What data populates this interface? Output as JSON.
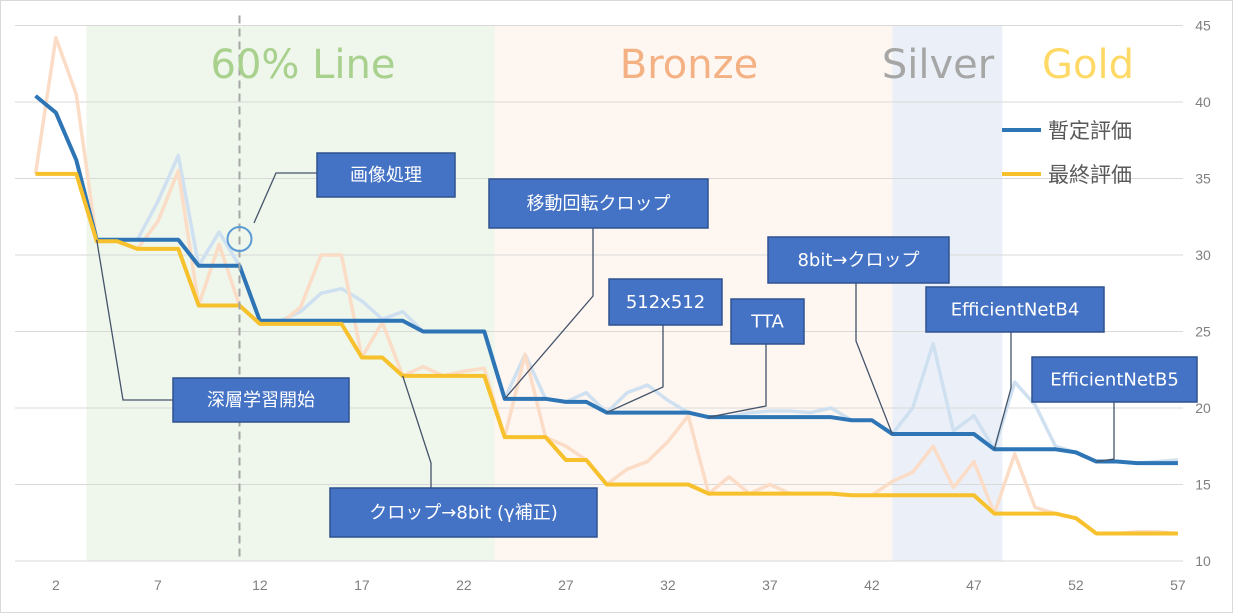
{
  "chart_data": {
    "type": "line",
    "x": [
      1,
      2,
      3,
      4,
      5,
      6,
      7,
      8,
      9,
      10,
      11,
      12,
      13,
      14,
      15,
      16,
      17,
      18,
      19,
      20,
      21,
      22,
      23,
      24,
      25,
      26,
      27,
      28,
      29,
      30,
      31,
      32,
      33,
      34,
      35,
      36,
      37,
      38,
      39,
      40,
      41,
      42,
      43,
      44,
      45,
      46,
      47,
      48,
      49,
      50,
      51,
      52,
      53,
      54,
      55,
      56,
      57
    ],
    "x_ticks": [
      2,
      7,
      12,
      17,
      22,
      27,
      32,
      37,
      42,
      47,
      52,
      57
    ],
    "ylim": [
      10,
      45
    ],
    "y_ticks": [
      10,
      15,
      20,
      25,
      30,
      35,
      40,
      45
    ],
    "y_axis_side": "right",
    "series": [
      {
        "name": "暫定評価",
        "color": "#2e75b6",
        "step_values": [
          40.4,
          39.3,
          36.2,
          31.0,
          31.0,
          31.0,
          31.0,
          31.0,
          29.3,
          29.3,
          29.3,
          25.7,
          25.7,
          25.7,
          25.7,
          25.7,
          25.7,
          25.7,
          25.7,
          25.0,
          25.0,
          25.0,
          25.0,
          20.6,
          20.6,
          20.6,
          20.4,
          20.4,
          19.7,
          19.7,
          19.7,
          19.7,
          19.7,
          19.4,
          19.4,
          19.4,
          19.4,
          19.4,
          19.4,
          19.4,
          19.2,
          19.2,
          18.3,
          18.3,
          18.3,
          18.3,
          18.3,
          17.3,
          17.3,
          17.3,
          17.3,
          17.1,
          16.5,
          16.5,
          16.4,
          16.4,
          16.4
        ],
        "raw_values": [
          40.4,
          39.3,
          36.2,
          31.0,
          31.0,
          31.0,
          33.5,
          36.5,
          29.3,
          31.5,
          29.3,
          25.7,
          25.7,
          26.3,
          27.5,
          27.8,
          27.0,
          25.8,
          26.3,
          25.0,
          25.0,
          25.0,
          25.0,
          20.6,
          23.5,
          20.6,
          20.4,
          21.0,
          19.7,
          21.0,
          21.5,
          20.5,
          19.7,
          19.4,
          19.4,
          19.7,
          19.8,
          19.8,
          19.7,
          20.0,
          19.2,
          19.2,
          18.3,
          20.0,
          24.2,
          18.5,
          19.5,
          17.3,
          21.7,
          20.2,
          17.5,
          17.1,
          16.5,
          16.5,
          16.4,
          16.5,
          16.6
        ]
      },
      {
        "name": "最終評価",
        "color": "#f6c12d",
        "step_values": [
          35.3,
          35.3,
          35.3,
          30.9,
          30.9,
          30.4,
          30.4,
          30.4,
          26.7,
          26.7,
          26.7,
          25.5,
          25.5,
          25.5,
          25.5,
          25.5,
          23.3,
          23.3,
          22.1,
          22.1,
          22.1,
          22.1,
          22.1,
          18.1,
          18.1,
          18.1,
          16.6,
          16.6,
          15.0,
          15.0,
          15.0,
          15.0,
          15.0,
          14.4,
          14.4,
          14.4,
          14.4,
          14.4,
          14.4,
          14.4,
          14.3,
          14.3,
          14.3,
          14.3,
          14.3,
          14.3,
          14.3,
          13.1,
          13.1,
          13.1,
          13.1,
          12.8,
          11.8,
          11.8,
          11.8,
          11.8,
          11.8
        ],
        "raw_values": [
          35.3,
          44.2,
          40.5,
          30.9,
          30.9,
          30.4,
          32.2,
          35.5,
          26.7,
          30.7,
          26.7,
          25.5,
          25.5,
          26.6,
          30.0,
          30.0,
          23.3,
          25.6,
          22.1,
          22.7,
          22.1,
          22.4,
          22.6,
          18.1,
          23.5,
          18.1,
          17.5,
          16.6,
          15.0,
          16.0,
          16.5,
          17.8,
          19.5,
          14.4,
          15.5,
          14.4,
          15.0,
          14.4,
          14.4,
          14.4,
          14.3,
          14.3,
          15.2,
          15.8,
          17.5,
          14.8,
          16.5,
          13.1,
          17.0,
          13.5,
          13.1,
          12.8,
          11.8,
          11.8,
          11.9,
          11.9,
          11.8
        ]
      }
    ],
    "zones": [
      {
        "label": "60% Line",
        "x_from": 3.5,
        "x_to": 23.5,
        "fill": "#e2efda",
        "text_color": "#a9d18e"
      },
      {
        "label": "Bronze",
        "x_from": 23.5,
        "x_to": 43,
        "fill": "#fbe5d6",
        "text_color": "#f4b183"
      },
      {
        "label": "Silver",
        "x_from": 43,
        "x_to": 48.4,
        "fill": "#dae3f3",
        "text_color": "#a6a6a6"
      },
      {
        "label": "Gold",
        "x_from": 48.4,
        "x_to": 58,
        "fill": "#ffffff",
        "text_color": "#ffd966"
      }
    ],
    "reference_line_x": 11,
    "legend_position": "right",
    "annotations": [
      {
        "text": "画像処理",
        "x": 11,
        "y": 29.3
      },
      {
        "text": "深層学習開始",
        "x": 4,
        "y": 31.0
      },
      {
        "text": "移動回転クロップ",
        "x": 24,
        "y": 20.6
      },
      {
        "text": "クロップ→8bit (γ補正)",
        "x": 19,
        "y": 22.1
      },
      {
        "text": "512x512",
        "x": 29,
        "y": 19.7
      },
      {
        "text": "TTA",
        "x": 34,
        "y": 19.4
      },
      {
        "text": "8bit→クロップ",
        "x": 43,
        "y": 18.3
      },
      {
        "text": "EfficientNetB4",
        "x": 48,
        "y": 17.3
      },
      {
        "text": "EfficientNetB5",
        "x": 53,
        "y": 16.5
      }
    ]
  }
}
